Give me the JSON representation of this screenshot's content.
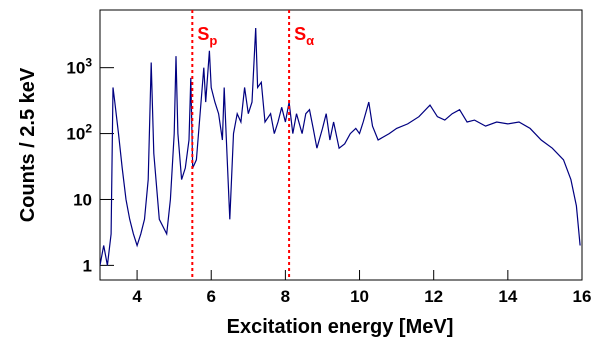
{
  "chart_data": {
    "type": "line",
    "log_y": true,
    "color": "#000080",
    "x_label": "Excitation energy [MeV]",
    "y_label": "Counts / 2.5 keV",
    "xlim": [
      3,
      16
    ],
    "ylim": [
      0.6,
      7500
    ],
    "xticks": [
      4,
      6,
      8,
      10,
      12,
      14,
      16
    ],
    "yticks": [
      1,
      10,
      {
        "value": 100,
        "label": "10",
        "exp": "2"
      },
      {
        "value": 1000,
        "label": "10",
        "exp": "3"
      }
    ],
    "annotations": [
      {
        "x": 5.49,
        "label": "S",
        "sub": "p",
        "color": "#ff0000"
      },
      {
        "x": 8.1,
        "label": "S",
        "sub": "α",
        "color": "#ff0000"
      }
    ],
    "x": [
      3.0,
      3.1,
      3.2,
      3.3,
      3.35,
      3.4,
      3.5,
      3.6,
      3.7,
      3.8,
      3.9,
      4.0,
      4.1,
      4.2,
      4.3,
      4.38,
      4.45,
      4.6,
      4.8,
      4.9,
      5.0,
      5.05,
      5.1,
      5.2,
      5.3,
      5.4,
      5.45,
      5.5,
      5.6,
      5.7,
      5.8,
      5.85,
      5.95,
      6.0,
      6.1,
      6.2,
      6.3,
      6.35,
      6.4,
      6.5,
      6.6,
      6.7,
      6.8,
      6.9,
      7.0,
      7.1,
      7.2,
      7.25,
      7.35,
      7.45,
      7.6,
      7.7,
      7.8,
      7.9,
      8.0,
      8.1,
      8.2,
      8.3,
      8.45,
      8.55,
      8.65,
      8.75,
      8.85,
      9.0,
      9.1,
      9.2,
      9.3,
      9.45,
      9.6,
      9.75,
      9.9,
      10.0,
      10.1,
      10.25,
      10.35,
      10.5,
      10.8,
      11.0,
      11.3,
      11.6,
      11.9,
      12.1,
      12.3,
      12.5,
      12.7,
      12.9,
      13.1,
      13.4,
      13.7,
      14.0,
      14.3,
      14.6,
      14.9,
      15.2,
      15.5,
      15.7,
      15.85,
      15.95
    ],
    "values": [
      1,
      2,
      1,
      3,
      500,
      300,
      100,
      30,
      10,
      5,
      3,
      2,
      3,
      5,
      20,
      1200,
      50,
      5,
      3,
      10,
      100,
      1500,
      100,
      20,
      30,
      80,
      700,
      30,
      40,
      200,
      1000,
      300,
      1800,
      500,
      300,
      200,
      80,
      500,
      100,
      5,
      100,
      200,
      150,
      500,
      200,
      300,
      4000,
      500,
      600,
      150,
      200,
      100,
      150,
      250,
      150,
      300,
      100,
      200,
      100,
      200,
      230,
      120,
      60,
      120,
      200,
      80,
      150,
      60,
      70,
      100,
      120,
      100,
      150,
      300,
      130,
      80,
      100,
      120,
      140,
      180,
      270,
      180,
      160,
      200,
      230,
      150,
      160,
      130,
      150,
      140,
      150,
      120,
      80,
      60,
      40,
      20,
      8,
      2
    ]
  }
}
